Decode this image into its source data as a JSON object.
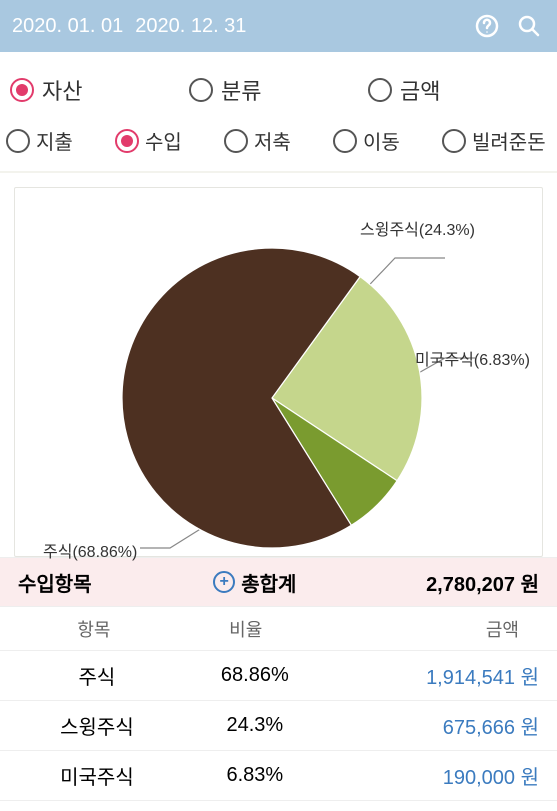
{
  "header": {
    "date_from": "2020. 01. 01",
    "date_to": "2020. 12. 31"
  },
  "top_tabs": [
    {
      "label": "자산",
      "selected": true
    },
    {
      "label": "분류",
      "selected": false
    },
    {
      "label": "금액",
      "selected": false
    }
  ],
  "sub_tabs": [
    {
      "label": "지출",
      "selected": false
    },
    {
      "label": "수입",
      "selected": true
    },
    {
      "label": "저축",
      "selected": false
    },
    {
      "label": "이동",
      "selected": false
    },
    {
      "label": "빌려준돈",
      "selected": false
    }
  ],
  "chart": {
    "type": "pie",
    "background": "#ffffff",
    "label_fontsize": 16,
    "label_color": "#333333",
    "leader_color": "#888888",
    "slices": [
      {
        "name": "주식",
        "pct": 68.86,
        "label": "주식(68.86%)",
        "color": "#4d3021"
      },
      {
        "name": "스윙주식",
        "pct": 24.3,
        "label": "스윙주식(24.3%)",
        "color": "#c5d68c"
      },
      {
        "name": "미국주식",
        "pct": 6.83,
        "label": "미국주식(6.83%)",
        "color": "#7a9b2f"
      }
    ]
  },
  "summary": {
    "col1_label": "수입항목",
    "col2_label": "총합계",
    "total": "2,780,207 원",
    "bg_color": "#fbeced",
    "accent_color": "#3b7bbf"
  },
  "table": {
    "headers": [
      "항목",
      "비율",
      "금액"
    ],
    "amount_color": "#3b7bbf",
    "rows": [
      {
        "name": "주식",
        "pct": "68.86%",
        "amount": "1,914,541 원"
      },
      {
        "name": "스윙주식",
        "pct": "24.3%",
        "amount": "675,666 원"
      },
      {
        "name": "미국주식",
        "pct": "6.83%",
        "amount": "190,000 원"
      }
    ]
  }
}
